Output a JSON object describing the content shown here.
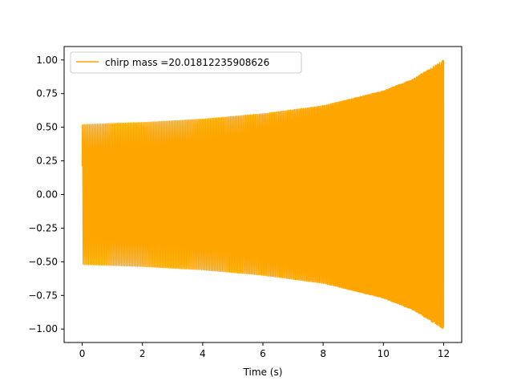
{
  "chart_data": {
    "type": "line",
    "title": "",
    "xlabel": "Time (s)",
    "ylabel": "",
    "xlim": [
      -0.6,
      12.6
    ],
    "ylim": [
      -1.1,
      1.1
    ],
    "xticks": [
      0,
      2,
      4,
      6,
      8,
      10,
      12
    ],
    "xtick_labels": [
      "0",
      "2",
      "4",
      "6",
      "8",
      "10",
      "12"
    ],
    "yticks": [
      1.0,
      0.75,
      0.5,
      0.25,
      0.0,
      -0.25,
      -0.5,
      -0.75,
      -1.0
    ],
    "ytick_labels": [
      "1.00",
      "0.75",
      "0.50",
      "0.25",
      "0.00",
      "−0.25",
      "−0.50",
      "−0.75",
      "−1.00"
    ],
    "grid": false,
    "legend_position": "upper-left",
    "series": [
      {
        "name": "chirp mass =20.01812235908626",
        "color": "#ffa500",
        "x_start": 0,
        "x_end": 12,
        "start_value": 0.21,
        "amplitude_at_start": 0.52,
        "amplitude_at_end": 1.0,
        "envelope_samples": {
          "x": [
            0,
            2,
            4,
            6,
            8,
            10,
            11,
            12
          ],
          "amplitude": [
            0.52,
            0.535,
            0.56,
            0.6,
            0.66,
            0.77,
            0.86,
            1.0
          ]
        }
      }
    ]
  }
}
